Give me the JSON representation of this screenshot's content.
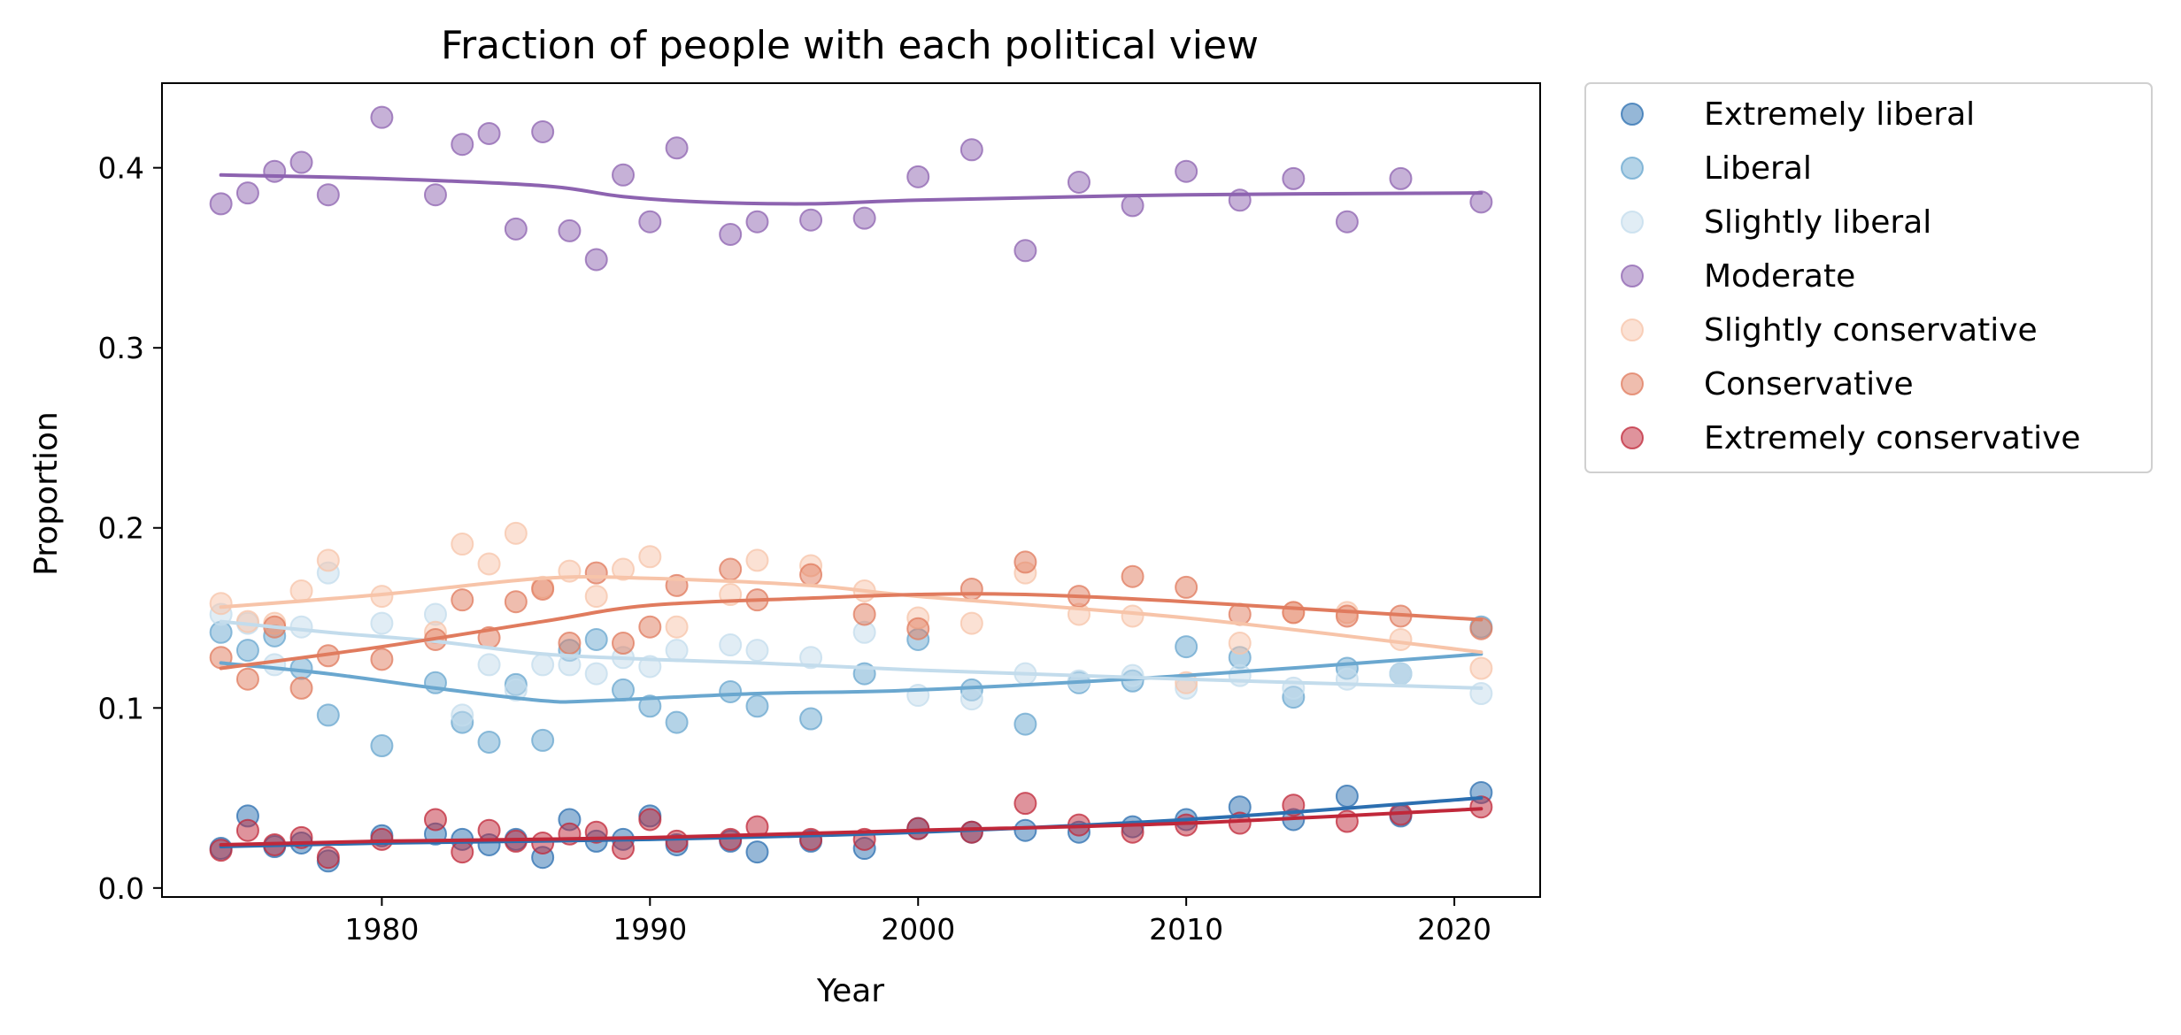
{
  "chart_data": {
    "type": "scatter",
    "title": "Fraction of people with each political view",
    "xlabel": "Year",
    "ylabel": "Proportion",
    "xlim": [
      1971.8,
      2023.2
    ],
    "ylim": [
      -0.005,
      0.447
    ],
    "xticks": [
      1980,
      1990,
      2000,
      2010,
      2020
    ],
    "yticks": [
      0.0,
      0.1,
      0.2,
      0.3,
      0.4
    ],
    "grid": false,
    "legend_position": "outside upper right",
    "series_style": "scatter points with smoothed trend line",
    "years": [
      1974,
      1975,
      1976,
      1977,
      1978,
      1980,
      1982,
      1983,
      1984,
      1985,
      1986,
      1987,
      1988,
      1989,
      1990,
      1991,
      1993,
      1994,
      1996,
      1998,
      2000,
      2002,
      2004,
      2006,
      2008,
      2010,
      2012,
      2014,
      2016,
      2018,
      2021
    ],
    "series": [
      {
        "name": "Extremely liberal",
        "color": "#2c6fb0",
        "alpha": 0.5,
        "values": [
          0.022,
          0.04,
          0.023,
          0.025,
          0.015,
          0.029,
          0.03,
          0.027,
          0.024,
          0.027,
          0.017,
          0.038,
          0.026,
          0.027,
          0.04,
          0.024,
          0.026,
          0.02,
          0.026,
          0.022,
          0.033,
          0.031,
          0.032,
          0.031,
          0.034,
          0.038,
          0.045,
          0.038,
          0.051,
          0.04,
          0.053
        ],
        "trend": [
          [
            1974,
            0.023
          ],
          [
            1980,
            0.025
          ],
          [
            1990,
            0.027
          ],
          [
            2000,
            0.031
          ],
          [
            2010,
            0.038
          ],
          [
            2021,
            0.05
          ]
        ]
      },
      {
        "name": "Liberal",
        "color": "#6aa7cf",
        "alpha": 0.5,
        "values": [
          0.142,
          0.132,
          0.14,
          0.122,
          0.096,
          0.079,
          0.114,
          0.092,
          0.081,
          0.113,
          0.082,
          0.132,
          0.138,
          0.11,
          0.101,
          0.092,
          0.109,
          0.101,
          0.094,
          0.119,
          0.138,
          0.11,
          0.091,
          0.114,
          0.115,
          0.134,
          0.128,
          0.106,
          0.122,
          0.119,
          0.145
        ],
        "trend": [
          [
            1974,
            0.125
          ],
          [
            1978,
            0.119
          ],
          [
            1982,
            0.111
          ],
          [
            1986,
            0.104
          ],
          [
            1988,
            0.104
          ],
          [
            1994,
            0.108
          ],
          [
            2000,
            0.11
          ],
          [
            2010,
            0.118
          ],
          [
            2021,
            0.13
          ]
        ]
      },
      {
        "name": "Slightly liberal",
        "color": "#c3dcec",
        "alpha": 0.5,
        "values": [
          0.152,
          0.147,
          0.124,
          0.145,
          0.175,
          0.147,
          0.152,
          0.096,
          0.124,
          0.11,
          0.124,
          0.124,
          0.119,
          0.128,
          0.123,
          0.132,
          0.135,
          0.132,
          0.128,
          0.142,
          0.107,
          0.105,
          0.119,
          0.115,
          0.118,
          0.111,
          0.118,
          0.111,
          0.116,
          0.119,
          0.108
        ],
        "trend": [
          [
            1974,
            0.148
          ],
          [
            1978,
            0.142
          ],
          [
            1982,
            0.137
          ],
          [
            1986,
            0.13
          ],
          [
            1990,
            0.127
          ],
          [
            1994,
            0.125
          ],
          [
            2000,
            0.121
          ],
          [
            2010,
            0.116
          ],
          [
            2021,
            0.111
          ]
        ]
      },
      {
        "name": "Moderate",
        "color": "#8d63b0",
        "alpha": 0.5,
        "values": [
          0.38,
          0.386,
          0.398,
          0.403,
          0.385,
          0.428,
          0.385,
          0.413,
          0.419,
          0.366,
          0.42,
          0.365,
          0.349,
          0.396,
          0.37,
          0.411,
          0.363,
          0.37,
          0.371,
          0.372,
          0.395,
          0.41,
          0.354,
          0.392,
          0.379,
          0.398,
          0.382,
          0.394,
          0.37,
          0.394,
          0.381
        ],
        "trend": [
          [
            1974,
            0.396
          ],
          [
            1980,
            0.394
          ],
          [
            1986,
            0.39
          ],
          [
            1989,
            0.384
          ],
          [
            1992,
            0.381
          ],
          [
            1996,
            0.38
          ],
          [
            2000,
            0.382
          ],
          [
            2010,
            0.385
          ],
          [
            2021,
            0.386
          ]
        ]
      },
      {
        "name": "Slightly conservative",
        "color": "#f7c4a9",
        "alpha": 0.5,
        "values": [
          0.158,
          0.148,
          0.147,
          0.165,
          0.182,
          0.162,
          0.142,
          0.191,
          0.18,
          0.197,
          0.167,
          0.176,
          0.162,
          0.177,
          0.184,
          0.145,
          0.163,
          0.182,
          0.179,
          0.165,
          0.15,
          0.147,
          0.175,
          0.152,
          0.151,
          0.114,
          0.136,
          0.153,
          0.153,
          0.138,
          0.122
        ],
        "trend": [
          [
            1974,
            0.156
          ],
          [
            1980,
            0.163
          ],
          [
            1986,
            0.172
          ],
          [
            1990,
            0.172
          ],
          [
            1996,
            0.168
          ],
          [
            2000,
            0.162
          ],
          [
            2010,
            0.15
          ],
          [
            2021,
            0.131
          ]
        ]
      },
      {
        "name": "Conservative",
        "color": "#e07b5e",
        "alpha": 0.5,
        "values": [
          0.128,
          0.116,
          0.145,
          0.111,
          0.129,
          0.127,
          0.138,
          0.16,
          0.139,
          0.159,
          0.166,
          0.136,
          0.175,
          0.136,
          0.145,
          0.168,
          0.177,
          0.16,
          0.174,
          0.152,
          0.144,
          0.166,
          0.181,
          0.162,
          0.173,
          0.167,
          0.152,
          0.153,
          0.151,
          0.151,
          0.144
        ],
        "trend": [
          [
            1974,
            0.122
          ],
          [
            1980,
            0.134
          ],
          [
            1986,
            0.148
          ],
          [
            1990,
            0.157
          ],
          [
            1996,
            0.161
          ],
          [
            2000,
            0.163
          ],
          [
            2004,
            0.163
          ],
          [
            2010,
            0.159
          ],
          [
            2021,
            0.149
          ]
        ]
      },
      {
        "name": "Extremely conservative",
        "color": "#c0283a",
        "alpha": 0.5,
        "values": [
          0.021,
          0.032,
          0.024,
          0.028,
          0.017,
          0.027,
          0.038,
          0.02,
          0.032,
          0.026,
          0.025,
          0.03,
          0.031,
          0.022,
          0.038,
          0.026,
          0.027,
          0.034,
          0.027,
          0.027,
          0.033,
          0.031,
          0.047,
          0.035,
          0.031,
          0.035,
          0.036,
          0.046,
          0.037,
          0.041,
          0.045
        ],
        "trend": [
          [
            1974,
            0.024
          ],
          [
            1980,
            0.026
          ],
          [
            1990,
            0.028
          ],
          [
            2000,
            0.032
          ],
          [
            2010,
            0.036
          ],
          [
            2021,
            0.044
          ]
        ]
      }
    ]
  }
}
